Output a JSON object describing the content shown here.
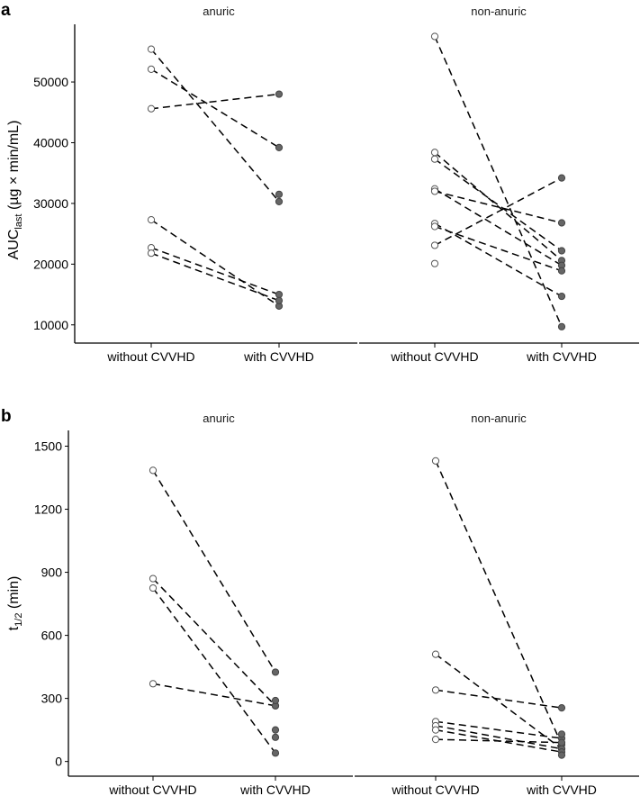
{
  "chart_data": [
    {
      "type": "scatter",
      "panel_label": "a",
      "ylabel_main": "AUC",
      "ylabel_sub": "last",
      "ylabel_units": " (µg × min/mL)",
      "ylim": [
        7000,
        59500
      ],
      "yticks": [
        10000,
        20000,
        30000,
        40000,
        50000
      ],
      "ytick_labels": [
        "10000",
        "20000",
        "30000",
        "40000",
        "50000"
      ],
      "categories": [
        "without CVVHD",
        "with CVVHD"
      ],
      "facets": [
        {
          "title": "anuric",
          "pairs": [
            [
              55400,
              30300
            ],
            [
              52100,
              39200
            ],
            [
              45600,
              48000
            ],
            [
              27300,
              13100
            ],
            [
              22700,
              15000
            ],
            [
              21800,
              14000
            ]
          ],
          "unpaired_without": [],
          "unpaired_with": [
            31500
          ]
        },
        {
          "title": "non-anuric",
          "pairs": [
            [
              57500,
              9700
            ],
            [
              38400,
              20600
            ],
            [
              37300,
              22200
            ],
            [
              32400,
              19800
            ],
            [
              32000,
              26800
            ],
            [
              26700,
              14700
            ],
            [
              26200,
              18900
            ],
            [
              23100,
              34200
            ]
          ],
          "unpaired_without": [
            20100
          ],
          "unpaired_with": []
        }
      ]
    },
    {
      "type": "scatter",
      "panel_label": "b",
      "ylabel_main": "t",
      "ylabel_sub": "1/2",
      "ylabel_units": " (min)",
      "ylim": [
        -70,
        1575
      ],
      "yticks": [
        0,
        300,
        600,
        900,
        1200,
        1500
      ],
      "ytick_labels": [
        "0",
        "300",
        "600",
        "900",
        "1200",
        "1500"
      ],
      "categories": [
        "without CVVHD",
        "with CVVHD"
      ],
      "facets": [
        {
          "title": "anuric",
          "pairs": [
            [
              1385,
              425
            ],
            [
              870,
              265
            ],
            [
              825,
              40
            ],
            [
              370,
              265
            ]
          ],
          "unpaired_without": [],
          "unpaired_with": [
            290,
            150,
            115
          ]
        },
        {
          "title": "non-anuric",
          "pairs": [
            [
              1430,
              80
            ],
            [
              510,
              60
            ],
            [
              340,
              255
            ],
            [
              190,
              110
            ],
            [
              170,
              60
            ],
            [
              150,
              45
            ],
            [
              105,
              90
            ]
          ],
          "unpaired_without": [],
          "unpaired_with": [
            130,
            30
          ]
        }
      ]
    }
  ]
}
